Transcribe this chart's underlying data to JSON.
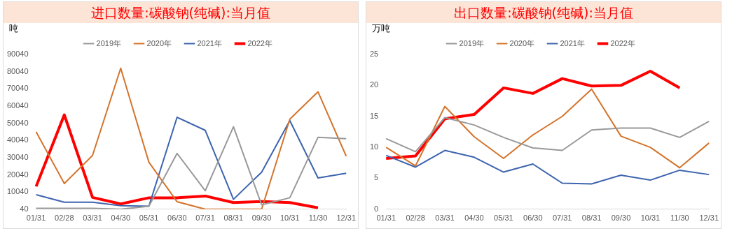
{
  "chart_data": [
    {
      "type": "line",
      "title": "进口数量:碳酸钠(纯碱):当月值",
      "ylabel": "吨",
      "categories": [
        "01/31",
        "02/28",
        "03/31",
        "04/30",
        "05/31",
        "06/30",
        "07/31",
        "08/31",
        "09/30",
        "10/31",
        "11/30",
        "12/31"
      ],
      "ylim": [
        40,
        90040
      ],
      "yticks": [
        40,
        10040,
        20040,
        30040,
        40040,
        50040,
        60040,
        70040,
        80040,
        90040
      ],
      "grid": false,
      "legend": "top",
      "marker": "none",
      "line_style": "solid",
      "series": [
        {
          "name": "2019年",
          "color": "#999999",
          "values": [
            550,
            550,
            550,
            40,
            1800,
            32500,
            10800,
            48000,
            2600,
            6700,
            41900,
            41000
          ]
        },
        {
          "name": "2020年",
          "color": "#d4742c",
          "values": [
            45000,
            15000,
            31300,
            82000,
            27400,
            4400,
            40,
            40,
            40,
            52400,
            68300,
            30900
          ]
        },
        {
          "name": "2021年",
          "color": "#3d64ae",
          "values": [
            8500,
            4100,
            4100,
            2100,
            1800,
            53500,
            45900,
            5800,
            21600,
            51600,
            18200,
            21000
          ]
        },
        {
          "name": "2022年",
          "color": "#ff0000",
          "values": [
            13300,
            54900,
            6900,
            3100,
            6700,
            6700,
            7700,
            3900,
            4500,
            3900,
            900,
            null
          ]
        }
      ]
    },
    {
      "type": "line",
      "title": "出口数量:碳酸钠(纯碱):当月值",
      "ylabel": "万吨",
      "categories": [
        "01/31",
        "02/28",
        "03/31",
        "04/30",
        "05/31",
        "06/30",
        "07/31",
        "08/31",
        "09/30",
        "10/31",
        "11/30",
        "12/31"
      ],
      "ylim": [
        0,
        25
      ],
      "yticks": [
        0,
        5,
        10,
        15,
        20,
        25
      ],
      "grid": false,
      "legend": "top",
      "marker": "none",
      "line_style": "solid",
      "series": [
        {
          "name": "2019年",
          "color": "#999999",
          "values": [
            11.4,
            9.3,
            14.8,
            13.6,
            11.6,
            9.9,
            9.5,
            12.8,
            13.1,
            13.1,
            11.6,
            14.2
          ]
        },
        {
          "name": "2020年",
          "color": "#d4742c",
          "values": [
            10.0,
            7.0,
            16.6,
            11.7,
            8.2,
            12.0,
            15.0,
            19.4,
            11.8,
            10.0,
            6.7,
            10.7
          ]
        },
        {
          "name": "2021年",
          "color": "#3d64ae",
          "values": [
            8.7,
            6.8,
            9.5,
            8.4,
            6.0,
            7.3,
            4.2,
            4.1,
            5.5,
            4.7,
            6.3,
            5.6
          ]
        },
        {
          "name": "2022年",
          "color": "#ff0000",
          "values": [
            8.2,
            8.6,
            14.6,
            15.3,
            19.6,
            18.7,
            21.1,
            19.9,
            20.0,
            22.3,
            19.6,
            null
          ]
        }
      ]
    }
  ]
}
